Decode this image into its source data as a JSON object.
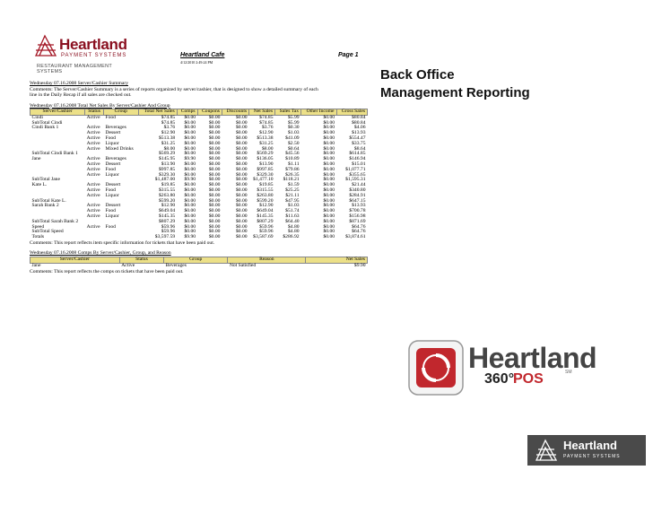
{
  "header": {
    "logo_word": "Heartland",
    "logo_sub": "PAYMENT SYSTEMS",
    "logo_tag": "RESTAURANT MANAGEMENT SYSTEMS",
    "cafe": "Heartland Cafe",
    "cafe_date": "4/12/2010 2:49:24 PM",
    "page": "Page 1"
  },
  "summary": {
    "title": "Wednesday 07.16.2008 Server/Cashier Summary",
    "comments_1": "Comments: The Server/Cashier Summary is a series of reports organized by server/cashier, that is designed to show a detailed summary of each",
    "comments_2": "line in the Daily Recap if all sales are checked out."
  },
  "net_sales": {
    "title": "Wednesday 07.16.2008 Total Net Sales By Server/Cashier And Group",
    "headers": [
      "Server/Cashier",
      "Status",
      "Group",
      "Total Net Sales",
      "Comps",
      "Coupons",
      "Discounts",
      "Net Sales",
      "Sales Tax",
      "Other Income",
      "Gross Sales"
    ],
    "rows": [
      [
        "Cindi",
        "Active",
        "Food",
        "$74.85",
        "$0.00",
        "$0.00",
        "$0.00",
        "$74.85",
        "$5.99",
        "$0.00",
        "$80.84"
      ],
      [
        "SubTotal Cindi",
        "",
        "",
        "$74.85",
        "$0.00",
        "$0.00",
        "$0.00",
        "$74.85",
        "$5.99",
        "$0.00",
        "$80.84"
      ],
      [
        "Cindi Bank 1",
        "Active",
        "Beverages",
        "$3.76",
        "$0.00",
        "$0.00",
        "$0.00",
        "$3.76",
        "$0.30",
        "$0.00",
        "$4.06"
      ],
      [
        "",
        "Active",
        "Dessert",
        "$12.90",
        "$0.00",
        "$0.00",
        "$0.00",
        "$12.90",
        "$1.03",
        "$0.00",
        "$13.93"
      ],
      [
        "",
        "Active",
        "Food",
        "$513.38",
        "$0.00",
        "$0.00",
        "$0.00",
        "$513.38",
        "$41.09",
        "$0.00",
        "$554.47"
      ],
      [
        "",
        "Active",
        "Liquor",
        "$31.25",
        "$0.00",
        "$0.00",
        "$0.00",
        "$31.25",
        "$2.50",
        "$0.00",
        "$33.75"
      ],
      [
        "",
        "Active",
        "Mixed Drinks",
        "$8.00",
        "$0.00",
        "$0.00",
        "$0.00",
        "$8.00",
        "$0.64",
        "$0.00",
        "$8.64"
      ],
      [
        "SubTotal Cindi Bank 1",
        "",
        "",
        "$569.29",
        "$0.00",
        "$0.00",
        "$0.00",
        "$569.29",
        "$45.56",
        "$0.00",
        "$614.85"
      ],
      [
        "Jane",
        "Active",
        "Beverages",
        "$145.95",
        "$9.90",
        "$0.00",
        "$0.00",
        "$136.05",
        "$10.89",
        "$0.00",
        "$146.94"
      ],
      [
        "",
        "Active",
        "Dessert",
        "$13.90",
        "$0.00",
        "$0.00",
        "$0.00",
        "$13.90",
        "$1.11",
        "$0.00",
        "$15.01"
      ],
      [
        "",
        "Active",
        "Food",
        "$997.85",
        "$0.00",
        "$0.00",
        "$0.00",
        "$997.85",
        "$79.86",
        "$0.00",
        "$1,077.71"
      ],
      [
        "",
        "Active",
        "Liquor",
        "$329.30",
        "$0.00",
        "$0.00",
        "$0.00",
        "$329.30",
        "$26.35",
        "$0.00",
        "$355.65"
      ],
      [
        "SubTotal Jane",
        "",
        "",
        "$1,487.00",
        "$9.90",
        "$0.00",
        "$0.00",
        "$1,477.10",
        "$118.21",
        "$0.00",
        "$1,595.31"
      ],
      [
        "Kate L.",
        "Active",
        "Dessert",
        "$19.85",
        "$0.00",
        "$0.00",
        "$0.00",
        "$19.85",
        "$1.59",
        "$0.00",
        "$21.44"
      ],
      [
        "",
        "Active",
        "Food",
        "$315.55",
        "$0.00",
        "$0.00",
        "$0.00",
        "$315.55",
        "$25.25",
        "$0.00",
        "$340.80"
      ],
      [
        "",
        "Active",
        "Liquor",
        "$263.80",
        "$0.00",
        "$0.00",
        "$0.00",
        "$263.80",
        "$21.11",
        "$0.00",
        "$284.91"
      ],
      [
        "SubTotal Kate L.",
        "",
        "",
        "$599.20",
        "$0.00",
        "$0.00",
        "$0.00",
        "$599.20",
        "$47.95",
        "$0.00",
        "$647.15"
      ],
      [
        "Sarah Bank 2",
        "Active",
        "Dessert",
        "$12.90",
        "$0.00",
        "$0.00",
        "$0.00",
        "$12.90",
        "$1.03",
        "$0.00",
        "$13.93"
      ],
      [
        "",
        "Active",
        "Food",
        "$649.04",
        "$0.00",
        "$0.00",
        "$0.00",
        "$649.04",
        "$51.74",
        "$0.00",
        "$700.78"
      ],
      [
        "",
        "Active",
        "Liquor",
        "$145.35",
        "$0.00",
        "$0.00",
        "$0.00",
        "$145.35",
        "$11.63",
        "$0.00",
        "$156.98"
      ],
      [
        "SubTotal Sarah Bank 2",
        "",
        "",
        "$807.29",
        "$0.00",
        "$0.00",
        "$0.00",
        "$807.29",
        "$64.40",
        "$0.00",
        "$871.69"
      ],
      [
        "Speed",
        "Active",
        "Food",
        "$59.96",
        "$0.00",
        "$0.00",
        "$0.00",
        "$59.96",
        "$4.80",
        "$0.00",
        "$64.76"
      ],
      [
        "SubTotal Speed",
        "",
        "",
        "$59.96",
        "$0.00",
        "$0.00",
        "$0.00",
        "$59.96",
        "$4.80",
        "$0.00",
        "$64.76"
      ],
      [
        "Totals",
        "",
        "",
        "$3,597.59",
        "$9.90",
        "$0.00",
        "$0.00",
        "$3,587.69",
        "$286.92",
        "$0.00",
        "$3,874.61"
      ]
    ],
    "comments": "Comments: This report reflects item specific information for tickets that have been paid out."
  },
  "comps": {
    "title": "Wednesday 07.16.2008 Comps By Server/Cashier, Group, and Reason",
    "headers": [
      "Server/Cashier",
      "Status",
      "Group",
      "Reason",
      "Net Sales"
    ],
    "rows": [
      [
        "Jane",
        "Active",
        "Beverages",
        "Not Satisfied",
        "$9.90"
      ]
    ],
    "comments": "Comments: This report reflects the comps on tickets that have been paid out."
  },
  "brand": {
    "back_office_1": "Back Office",
    "back_office_2": "Management Reporting",
    "hl_word": "Heartland",
    "hl_360": "360°",
    "hl_pos": "POS",
    "hl_sm": "SM",
    "bottom_word": "Heartland",
    "bottom_sub": "PAYMENT SYSTEMS"
  },
  "colors": {
    "brand_red": "#c1272d",
    "header_fill": "#ece088",
    "dark_gray": "#4a4a4a"
  }
}
